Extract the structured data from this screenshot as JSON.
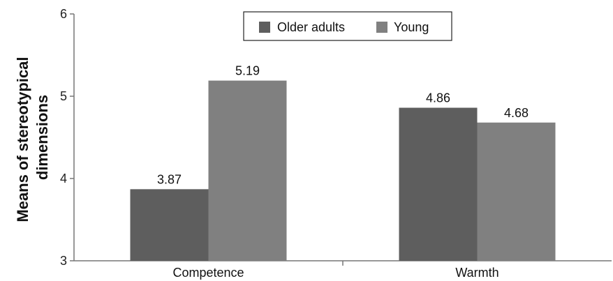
{
  "chart_data": {
    "type": "bar",
    "categories": [
      "Competence",
      "Warmth"
    ],
    "series": [
      {
        "name": "Older adults",
        "values": [
          3.87,
          4.86
        ],
        "color": "#5e5e5e"
      },
      {
        "name": "Young",
        "values": [
          5.19,
          4.68
        ],
        "color": "#808080"
      }
    ],
    "data_labels": [
      [
        "3.87",
        "4.86"
      ],
      [
        "5.19",
        "4.68"
      ]
    ],
    "ylabel": "Means of stereotypical dimensions",
    "ylabel_lines": [
      "Means of stereotypical",
      "dimensions"
    ],
    "xlabel": "",
    "ylim": [
      3,
      6
    ],
    "yticks": [
      "3",
      "4",
      "5",
      "6"
    ],
    "grid": false,
    "legend_position": "top-center"
  }
}
